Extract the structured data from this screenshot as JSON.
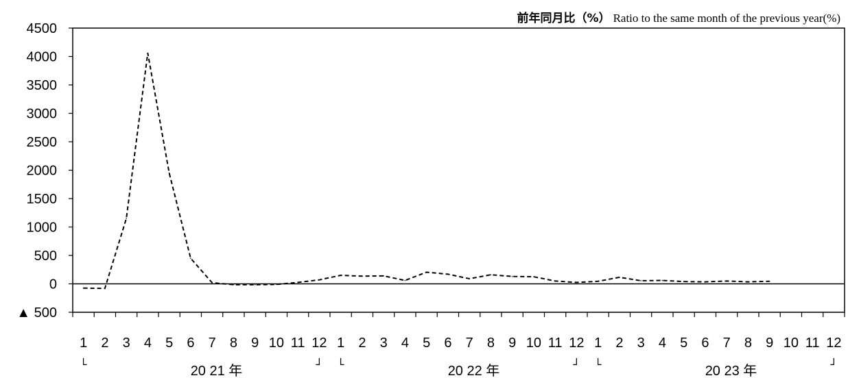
{
  "chart_data": {
    "type": "line",
    "title_jp": "前年同月比（%）",
    "title_en": "Ratio to the same month of the previous year(%)",
    "ylim": [
      -500,
      4500
    ],
    "y_ticks": [
      {
        "value": 4500,
        "label": "4500"
      },
      {
        "value": 4000,
        "label": "4000"
      },
      {
        "value": 3500,
        "label": "3500"
      },
      {
        "value": 3000,
        "label": "3000"
      },
      {
        "value": 2500,
        "label": "2500"
      },
      {
        "value": 2000,
        "label": "2000"
      },
      {
        "value": 1500,
        "label": "1500"
      },
      {
        "value": 1000,
        "label": "1000"
      },
      {
        "value": 500,
        "label": "500"
      },
      {
        "value": 0,
        "label": "0"
      },
      {
        "value": -500,
        "label": "▲ 500"
      }
    ],
    "month_labels": [
      "1",
      "2",
      "3",
      "4",
      "5",
      "6",
      "7",
      "8",
      "9",
      "10",
      "11",
      "12",
      "1",
      "2",
      "3",
      "4",
      "5",
      "6",
      "7",
      "8",
      "9",
      "10",
      "11",
      "12",
      "1",
      "2",
      "3",
      "4",
      "5",
      "6",
      "7",
      "8",
      "9",
      "10",
      "11",
      "12"
    ],
    "year_groups": [
      {
        "label": "20 21 年",
        "open": "└",
        "close": "┘"
      },
      {
        "label": "20 22 年",
        "open": "└",
        "close": "┘"
      },
      {
        "label": "20 23 年",
        "open": "└",
        "close": "┘"
      }
    ],
    "series": [
      {
        "style": "dashed",
        "color": "#000000",
        "values": [
          -75,
          -80,
          1150,
          4060,
          1950,
          450,
          20,
          -15,
          -15,
          -10,
          25,
          70,
          150,
          135,
          140,
          60,
          205,
          170,
          90,
          160,
          130,
          125,
          50,
          25,
          45,
          115,
          55,
          60,
          40,
          35,
          50,
          35,
          45
        ]
      }
    ],
    "grid": false,
    "legend": "none"
  }
}
